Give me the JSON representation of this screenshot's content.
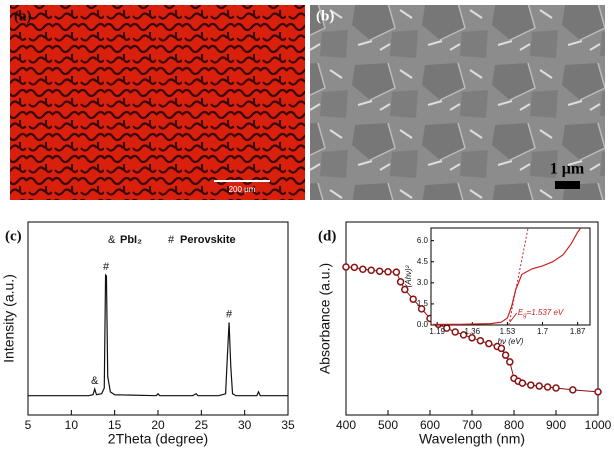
{
  "images": [
    {
      "label": "(a)",
      "scale_bar": "200 μm"
    },
    {
      "label": "(b)",
      "scale_bar": "1 μm"
    }
  ],
  "chart_data": [
    {
      "type": "line",
      "panel": "(c)",
      "xlabel": "2Theta (degree)",
      "ylabel": "Intensity (a.u.)",
      "legend": [
        {
          "symbol": "&",
          "name": "PbI₂"
        },
        {
          "symbol": "#",
          "name": "Perovskite"
        }
      ],
      "annotations": [
        {
          "text": "&",
          "x": 12.7,
          "y": 13.5
        },
        {
          "text": "#",
          "x": 14.0,
          "y": 72.5
        },
        {
          "text": "#",
          "x": 28.2,
          "y": 48
        }
      ],
      "color": "#111111",
      "xlim": [
        5,
        35
      ],
      "xticks": [
        5,
        10,
        15,
        20,
        25,
        30,
        35
      ],
      "ylim": [
        0,
        100
      ],
      "x": [
        5,
        8,
        10,
        12,
        12.5,
        12.7,
        12.9,
        13.5,
        13.8,
        13.95,
        14.05,
        14.2,
        14.5,
        15,
        19.8,
        20,
        20.2,
        24,
        24.4,
        24.6,
        27,
        27.8,
        28.0,
        28.2,
        28.4,
        28.6,
        29,
        31.4,
        31.6,
        31.8,
        35
      ],
      "values": [
        10,
        10,
        10,
        10,
        10.5,
        13.5,
        10.5,
        11,
        14,
        72.5,
        72,
        20,
        12,
        10.5,
        10,
        11,
        10,
        10,
        11,
        10,
        10,
        11,
        30,
        48,
        25,
        11,
        10,
        10,
        12,
        10,
        10
      ]
    },
    {
      "type": "line",
      "markers": true,
      "panel": "(d)",
      "xlabel": "Wavelength (nm)",
      "ylabel": "Absorbance (a.u.)",
      "color": "#8b1010",
      "xlim": [
        400,
        1000
      ],
      "xticks": [
        400,
        500,
        600,
        700,
        800,
        900,
        1000
      ],
      "ylim": [
        0,
        100
      ],
      "x": [
        400,
        420,
        440,
        460,
        480,
        500,
        520,
        530,
        540,
        560,
        580,
        600,
        620,
        640,
        660,
        680,
        700,
        720,
        740,
        760,
        770,
        780,
        790,
        800,
        810,
        820,
        840,
        860,
        880,
        900,
        940,
        1000
      ],
      "values": [
        76.7,
        76.5,
        75.5,
        75,
        74.5,
        74.2,
        74,
        69,
        65,
        60,
        55,
        50,
        47,
        45,
        43,
        41.5,
        40,
        38.5,
        37,
        35.5,
        34.5,
        31,
        27.5,
        19,
        17.5,
        16.5,
        15.5,
        15,
        14.5,
        14,
        13,
        12
      ]
    },
    {
      "type": "line",
      "inset": true,
      "xlabel": "hν (eV)",
      "ylabel": "(Ahν)²",
      "annotation": {
        "symbol": "E",
        "subscript": "g",
        "text": "=1.537 eV"
      },
      "color": "#cc2222",
      "xlim": [
        1.16,
        1.93
      ],
      "xticks": [
        1.19,
        1.36,
        1.53,
        1.7,
        1.87
      ],
      "ylim": [
        0,
        6.9
      ],
      "yticks": [
        {
          "value": 0,
          "label": "0.0"
        },
        1.5,
        {
          "value": 3,
          "label": "3.0"
        },
        4.5,
        {
          "value": 6,
          "label": "6.0"
        }
      ],
      "x": [
        1.17,
        1.3,
        1.45,
        1.5,
        1.53,
        1.55,
        1.57,
        1.6,
        1.65,
        1.7,
        1.75,
        1.8,
        1.84,
        1.87,
        1.9
      ],
      "values": [
        0.05,
        0.05,
        0.1,
        0.2,
        0.5,
        1.3,
        2.5,
        3.6,
        4.0,
        4.2,
        4.5,
        5.0,
        5.8,
        6.6,
        7.2
      ],
      "fit": {
        "x": [
          1.537,
          1.63
        ],
        "values": [
          0,
          6.9
        ]
      }
    }
  ]
}
